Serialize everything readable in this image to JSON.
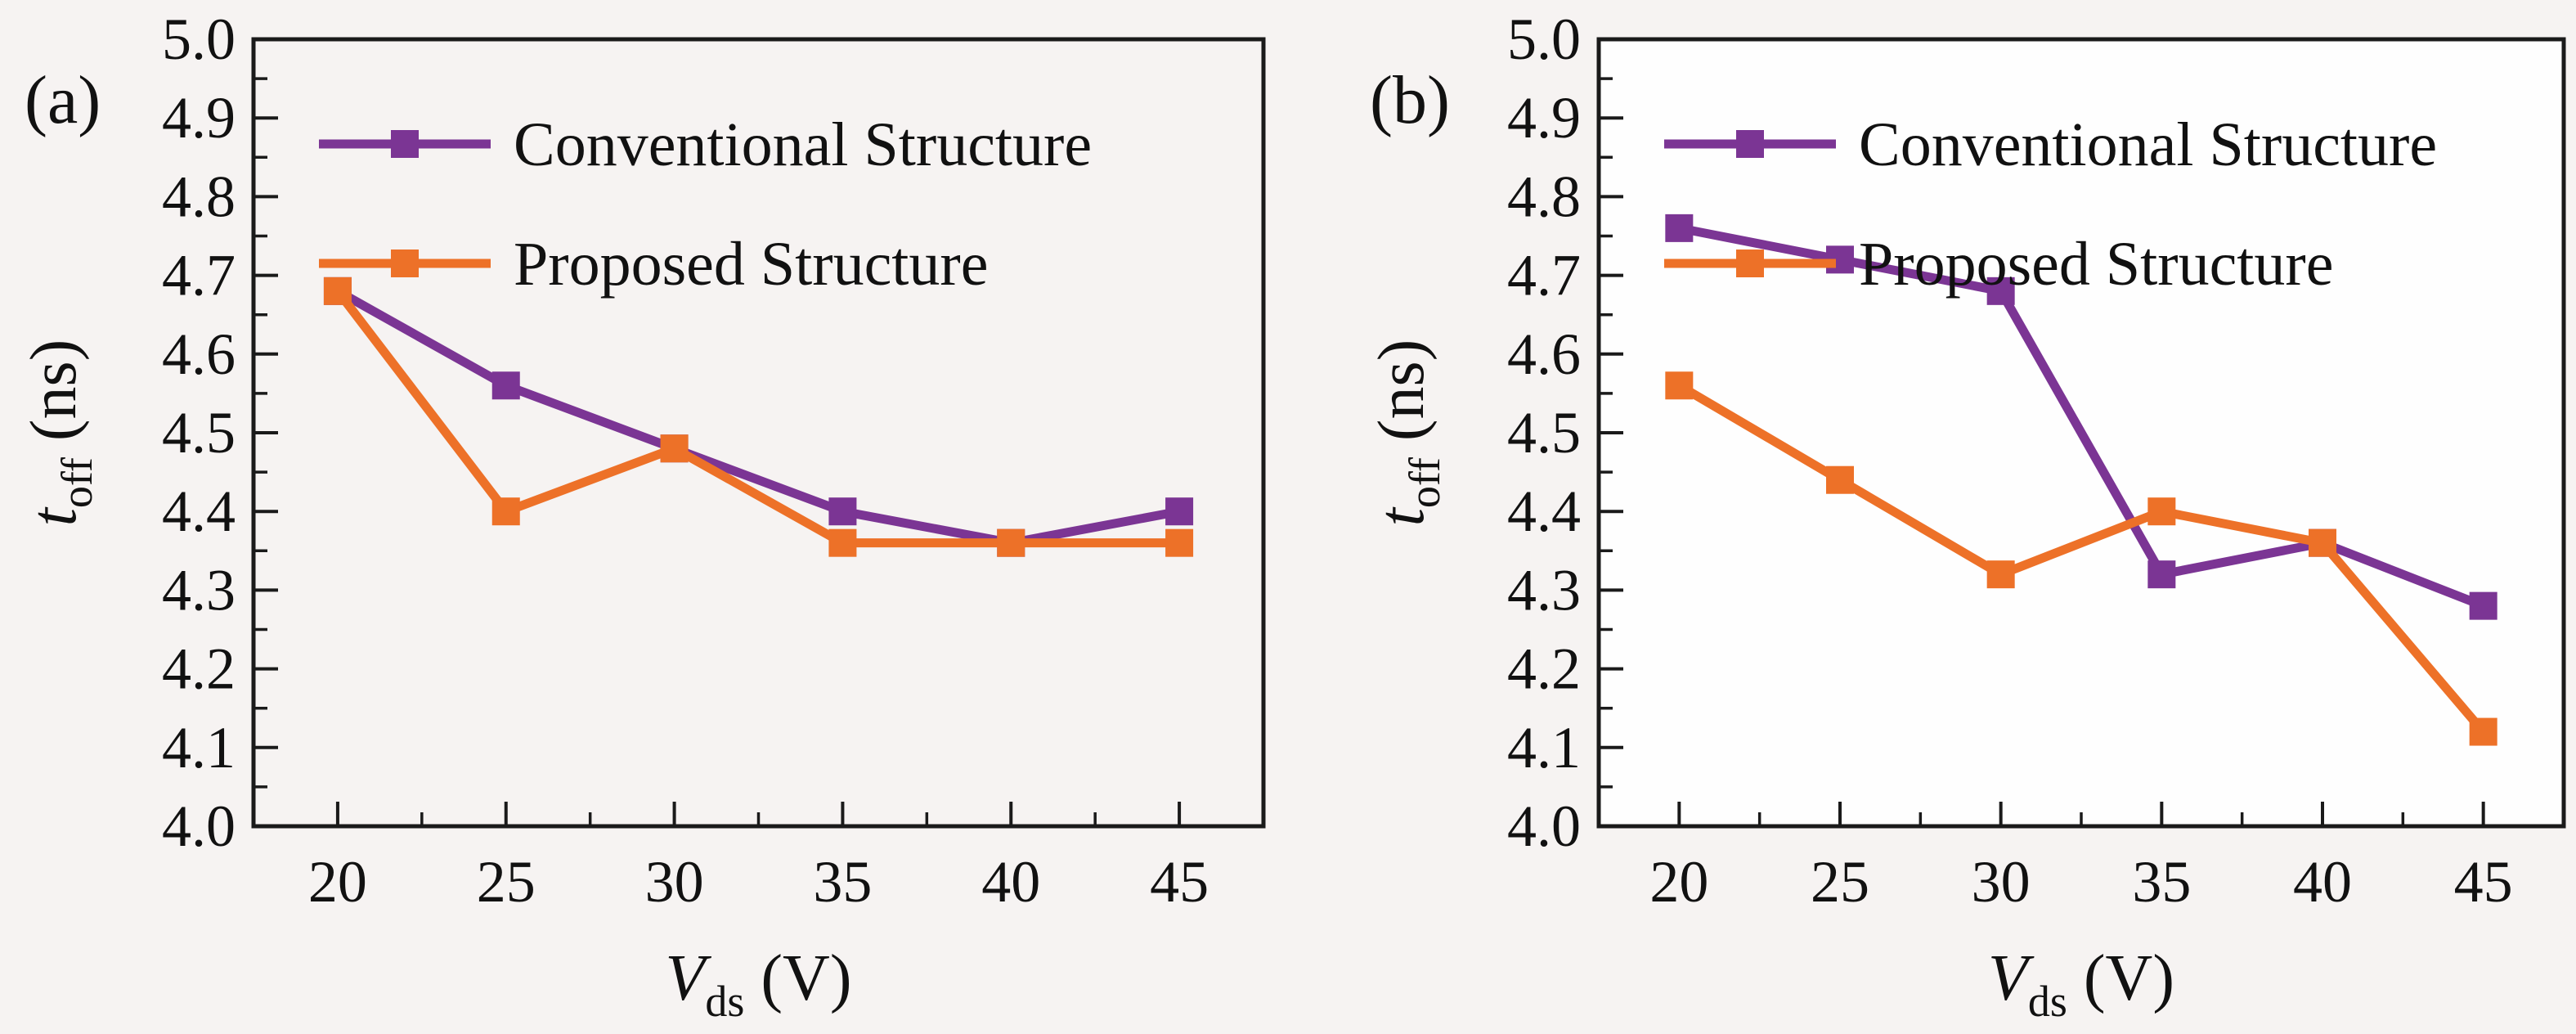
{
  "figure": {
    "background": "#f6f3f2",
    "panels": [
      "(a)",
      "(b)"
    ]
  },
  "colors": {
    "conventional": "#7B3594",
    "proposed": "#ED7128",
    "axis": "#1a1a1a",
    "text": "#111111",
    "panel_a_plot_bg": "#f6f3f2",
    "panel_b_plot_bg": "#fefefe"
  },
  "chart_data": [
    {
      "type": "line",
      "panel_label": "(a)",
      "title": "",
      "xlabel": {
        "variable": "V",
        "subscript": "ds",
        "unit": "(V)"
      },
      "ylabel": {
        "variable": "t",
        "subscript": "off",
        "unit": "(ns)"
      },
      "xlim": [
        17.5,
        47.5
      ],
      "ylim": [
        4.0,
        5.0
      ],
      "x_ticks": [
        "20",
        "25",
        "30",
        "35",
        "40",
        "45"
      ],
      "x_tick_values": [
        20,
        25,
        30,
        35,
        40,
        45
      ],
      "x_minor_tick_values": [
        22.5,
        27.5,
        32.5,
        37.5,
        42.5
      ],
      "y_ticks": [
        "5.0",
        "4.9",
        "4.8",
        "4.7",
        "4.6",
        "4.5",
        "4.4",
        "4.3",
        "4.2",
        "4.1",
        "4.0"
      ],
      "y_tick_values": [
        5.0,
        4.9,
        4.8,
        4.7,
        4.6,
        4.5,
        4.4,
        4.3,
        4.2,
        4.1,
        4.0
      ],
      "y_minor_tick_values": [
        4.95,
        4.85,
        4.75,
        4.65,
        4.55,
        4.45,
        4.35,
        4.25,
        4.15,
        4.05
      ],
      "grid": false,
      "legend_position": "top-left-inside",
      "plot_bg": "#f6f3f2",
      "x": [
        20,
        25,
        30,
        35,
        40,
        45
      ],
      "series": [
        {
          "name": "Conventional Structure",
          "color": "#7B3594",
          "marker": "square",
          "values": [
            4.68,
            4.56,
            4.48,
            4.4,
            4.36,
            4.4
          ]
        },
        {
          "name": "Proposed Structure",
          "color": "#ED7128",
          "marker": "square",
          "values": [
            4.68,
            4.4,
            4.48,
            4.36,
            4.36,
            4.36
          ]
        }
      ]
    },
    {
      "type": "line",
      "panel_label": "(b)",
      "title": "",
      "xlabel": {
        "variable": "V",
        "subscript": "ds",
        "unit": "(V)"
      },
      "ylabel": {
        "variable": "t",
        "subscript": "off",
        "unit": "(ns)"
      },
      "xlim": [
        17.5,
        47.5
      ],
      "ylim": [
        4.0,
        5.0
      ],
      "x_ticks": [
        "20",
        "25",
        "30",
        "35",
        "40",
        "45"
      ],
      "x_tick_values": [
        20,
        25,
        30,
        35,
        40,
        45
      ],
      "x_minor_tick_values": [
        22.5,
        27.5,
        32.5,
        37.5,
        42.5
      ],
      "y_ticks": [
        "5.0",
        "4.9",
        "4.8",
        "4.7",
        "4.6",
        "4.5",
        "4.4",
        "4.3",
        "4.2",
        "4.1",
        "4.0"
      ],
      "y_tick_values": [
        5.0,
        4.9,
        4.8,
        4.7,
        4.6,
        4.5,
        4.4,
        4.3,
        4.2,
        4.1,
        4.0
      ],
      "y_minor_tick_values": [
        4.95,
        4.85,
        4.75,
        4.65,
        4.55,
        4.45,
        4.35,
        4.25,
        4.15,
        4.05
      ],
      "grid": false,
      "legend_position": "top-left-inside",
      "plot_bg": "#fefefe",
      "x": [
        20,
        25,
        30,
        35,
        40,
        45
      ],
      "series": [
        {
          "name": "Conventional Structure",
          "color": "#7B3594",
          "marker": "square",
          "values": [
            4.76,
            4.72,
            4.68,
            4.32,
            4.36,
            4.28
          ]
        },
        {
          "name": "Proposed Structure",
          "color": "#ED7128",
          "marker": "square",
          "values": [
            4.56,
            4.44,
            4.32,
            4.4,
            4.36,
            4.12
          ]
        }
      ]
    }
  ]
}
